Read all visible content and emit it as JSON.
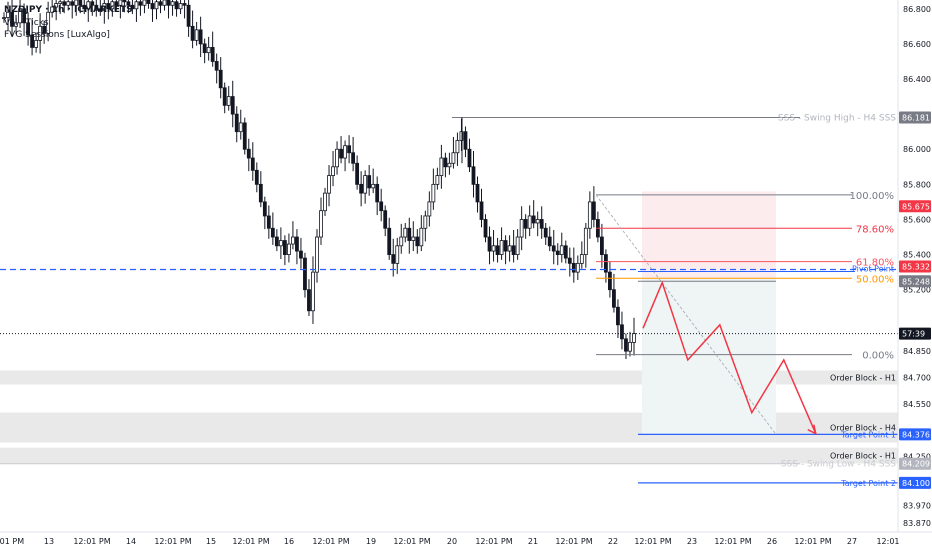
{
  "legend": {
    "symbol": "NZDJPY · 1h · ICMARKETS",
    "vol": "Vol · Ticks",
    "fvg": "FVG Sessions [LuxAlgo]"
  },
  "chart_data": {
    "type": "candlestick",
    "ylim": [
      83.82,
      86.85
    ],
    "price_ticks": [
      {
        "v": 86.8,
        "label": "86.800"
      },
      {
        "v": 86.6,
        "label": "86.600"
      },
      {
        "v": 86.4,
        "label": "86.400"
      },
      {
        "v": 86.0,
        "label": "86.000"
      },
      {
        "v": 85.8,
        "label": "85.800"
      },
      {
        "v": 85.6,
        "label": "85.600"
      },
      {
        "v": 85.4,
        "label": "85.400"
      },
      {
        "v": 85.2,
        "label": "85.200"
      },
      {
        "v": 84.85,
        "label": "84.850"
      },
      {
        "v": 84.7,
        "label": "84.700"
      },
      {
        "v": 84.55,
        "label": "84.550"
      },
      {
        "v": 84.25,
        "label": "84.250"
      },
      {
        "v": 83.97,
        "label": "83.970"
      },
      {
        "v": 83.87,
        "label": "83.870"
      }
    ],
    "time_ticks": [
      "2:01 PM",
      "13",
      "12:01 PM",
      "14",
      "12:01 PM",
      "15",
      "12:01 PM",
      "16",
      "12:01 PM",
      "19",
      "12:01 PM",
      "20",
      "12:01 PM",
      "21",
      "12:01 PM",
      "22",
      "12:01 PM",
      "23",
      "12:01 PM",
      "26",
      "12:01 PM",
      "27",
      "12:01"
    ],
    "price_badges": [
      {
        "v": 86.181,
        "label": "86.181",
        "bg": "#787b86",
        "fg": "#ffffff"
      },
      {
        "v": 85.675,
        "label": "85.675",
        "bg": "#f23645",
        "fg": "#ffffff"
      },
      {
        "v": 85.332,
        "label": "85.332",
        "bg": "#f23645",
        "fg": "#ffffff"
      },
      {
        "v": 85.248,
        "label": "85.248",
        "bg": "#787b86",
        "fg": "#ffffff"
      },
      {
        "v": 84.95,
        "label": "57:39",
        "bg": "#131722",
        "fg": "#ffffff"
      },
      {
        "v": 84.376,
        "label": "84.376",
        "bg": "#2962ff",
        "fg": "#ffffff"
      },
      {
        "v": 84.209,
        "label": "84.209",
        "bg": "#b2b5be",
        "fg": "#ffffff"
      },
      {
        "v": 84.1,
        "label": "84.100",
        "bg": "#2962ff",
        "fg": "#ffffff"
      }
    ],
    "swing_high": {
      "v": 86.181,
      "label": "SSS - Swing High - H4 SSS"
    },
    "swing_low": {
      "v": 84.209,
      "label": "SSS - Swing Low - H4 SSS"
    },
    "fib_levels": [
      {
        "v": 85.74,
        "label": "100.00%",
        "color": "#787b86"
      },
      {
        "v": 85.55,
        "label": "78.60%",
        "color": "#f23645"
      },
      {
        "v": 85.36,
        "label": "61.80%",
        "color": "#f7525f"
      },
      {
        "v": 85.265,
        "label": "50.00%",
        "color": "#ff9800"
      },
      {
        "v": 84.83,
        "label": "0.00%",
        "color": "#787b86"
      }
    ],
    "pivot_point": {
      "v": 85.315,
      "label": "Pivot Point"
    },
    "dashed_blue": 85.315,
    "current_price": 84.95,
    "order_blocks": [
      {
        "top": 84.74,
        "bottom": 84.66,
        "label": "Order Block - H1"
      },
      {
        "top": 84.5,
        "bottom": 84.33,
        "label": "Order Block - H4"
      },
      {
        "top": 84.3,
        "bottom": 84.21,
        "label": "Order Block - H1"
      }
    ],
    "target_points": [
      {
        "v": 84.376,
        "label": "Target Point 1"
      },
      {
        "v": 84.1,
        "label": "Target Point 2"
      }
    ],
    "projection": [
      [
        85.0,
        84.98
      ],
      [
        85.6,
        85.24
      ],
      [
        86.4,
        84.8
      ],
      [
        87.4,
        85.0
      ],
      [
        88.4,
        84.5
      ],
      [
        89.4,
        84.8
      ],
      [
        90.4,
        84.38
      ]
    ],
    "candles_close": [
      86.75,
      86.78,
      86.7,
      86.72,
      86.8,
      86.72,
      86.65,
      86.58,
      86.62,
      86.7,
      86.66,
      86.78,
      86.81,
      86.83,
      86.84,
      86.82,
      86.84,
      86.82,
      86.85,
      86.82,
      86.8,
      86.84,
      86.82,
      86.8,
      86.79,
      86.83,
      86.8,
      86.84,
      86.82,
      86.85,
      86.84,
      86.82,
      86.8,
      86.84,
      86.82,
      86.85,
      86.83,
      86.8,
      86.84,
      86.82,
      86.85,
      86.82,
      86.84,
      86.8,
      86.83,
      86.82,
      86.7,
      86.62,
      86.68,
      86.6,
      86.55,
      86.58,
      86.5,
      86.45,
      86.35,
      86.25,
      86.3,
      86.2,
      86.1,
      86.15,
      86.0,
      85.95,
      85.88,
      85.8,
      85.7,
      85.62,
      85.55,
      85.5,
      85.45,
      85.48,
      85.4,
      85.46,
      85.5,
      85.42,
      85.38,
      85.2,
      85.08,
      85.3,
      85.5,
      85.65,
      85.75,
      85.85,
      85.9,
      86.0,
      85.95,
      86.02,
      85.98,
      85.92,
      85.8,
      85.75,
      85.85,
      85.78,
      85.8,
      85.7,
      85.65,
      85.55,
      85.4,
      85.35,
      85.45,
      85.5,
      85.55,
      85.48,
      85.5,
      85.45,
      85.55,
      85.62,
      85.7,
      85.8,
      85.85,
      85.95,
      85.9,
      85.92,
      85.98,
      86.05,
      86.1,
      86.0,
      85.9,
      85.8,
      85.7,
      85.6,
      85.5,
      85.42,
      85.45,
      85.4,
      85.48,
      85.42,
      85.45,
      85.4,
      85.5,
      85.6,
      85.55,
      85.62,
      85.58,
      85.6,
      85.55,
      85.5,
      85.45,
      85.42,
      85.4,
      85.45,
      85.38,
      85.35,
      85.3,
      85.35,
      85.4,
      85.55,
      85.7,
      85.6,
      85.5,
      85.4,
      85.3,
      85.2,
      85.1,
      85.0,
      84.92,
      84.85,
      84.9,
      84.95
    ],
    "annotations": [
      "NZDJPY · 1h · ICMARKETS"
    ]
  }
}
